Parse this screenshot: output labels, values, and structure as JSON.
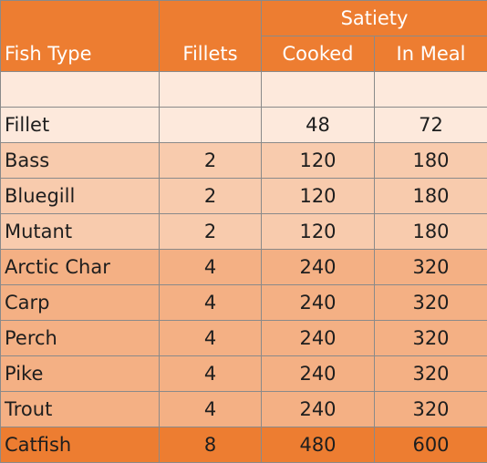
{
  "header": {
    "fish_type": "Fish Type",
    "fillets": "Fillets",
    "satiety": "Satiety",
    "cooked": "Cooked",
    "in_meal": "In Meal"
  },
  "rows": [
    {
      "fish": "",
      "fillets": "",
      "cooked": "",
      "in_meal": "",
      "tier": "blank"
    },
    {
      "fish": "Fillet",
      "fillets": "",
      "cooked": "48",
      "in_meal": "72",
      "tier": "t1"
    },
    {
      "fish": "Bass",
      "fillets": "2",
      "cooked": "120",
      "in_meal": "180",
      "tier": "t2"
    },
    {
      "fish": "Bluegill",
      "fillets": "2",
      "cooked": "120",
      "in_meal": "180",
      "tier": "t2"
    },
    {
      "fish": "Mutant",
      "fillets": "2",
      "cooked": "120",
      "in_meal": "180",
      "tier": "t2"
    },
    {
      "fish": "Arctic Char",
      "fillets": "4",
      "cooked": "240",
      "in_meal": "320",
      "tier": "t3"
    },
    {
      "fish": "Carp",
      "fillets": "4",
      "cooked": "240",
      "in_meal": "320",
      "tier": "t3"
    },
    {
      "fish": "Perch",
      "fillets": "4",
      "cooked": "240",
      "in_meal": "320",
      "tier": "t3"
    },
    {
      "fish": "Pike",
      "fillets": "4",
      "cooked": "240",
      "in_meal": "320",
      "tier": "t3"
    },
    {
      "fish": "Trout",
      "fillets": "4",
      "cooked": "240",
      "in_meal": "320",
      "tier": "t3"
    },
    {
      "fish": "Catfish",
      "fillets": "8",
      "cooked": "480",
      "in_meal": "600",
      "tier": "t4"
    }
  ],
  "colors": {
    "header": "#ed7d31",
    "tier_light": "#fde9dc",
    "tier_2": "#f8cbad",
    "tier_3": "#f4b084",
    "tier_4": "#ed7d31"
  }
}
